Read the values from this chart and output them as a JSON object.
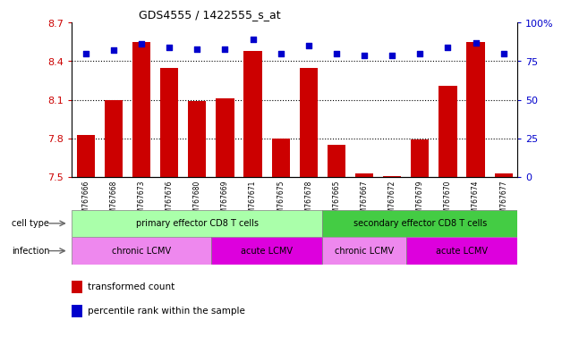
{
  "title": "GDS4555 / 1422555_s_at",
  "samples": [
    "GSM767666",
    "GSM767668",
    "GSM767673",
    "GSM767676",
    "GSM767680",
    "GSM767669",
    "GSM767671",
    "GSM767675",
    "GSM767678",
    "GSM767665",
    "GSM767667",
    "GSM767672",
    "GSM767679",
    "GSM767670",
    "GSM767674",
    "GSM767677"
  ],
  "bar_values": [
    7.83,
    8.1,
    8.55,
    8.35,
    8.09,
    8.11,
    8.48,
    7.8,
    8.35,
    7.75,
    7.53,
    7.51,
    7.79,
    8.21,
    8.55,
    7.53
  ],
  "dot_values": [
    80,
    82,
    86,
    84,
    83,
    83,
    89,
    80,
    85,
    80,
    79,
    79,
    80,
    84,
    87,
    80
  ],
  "ylim_left": [
    7.5,
    8.7
  ],
  "ylim_right": [
    0,
    100
  ],
  "yticks_left": [
    7.5,
    7.8,
    8.1,
    8.4,
    8.7
  ],
  "yticks_right": [
    0,
    25,
    50,
    75,
    100
  ],
  "ytick_labels_right": [
    "0",
    "25",
    "50",
    "75",
    "100%"
  ],
  "grid_dotted_at": [
    7.8,
    8.1,
    8.4
  ],
  "bar_color": "#cc0000",
  "dot_color": "#0000cc",
  "cell_type_groups": [
    {
      "label": "primary effector CD8 T cells",
      "start": 0,
      "end": 9,
      "color": "#aaffaa"
    },
    {
      "label": "secondary effector CD8 T cells",
      "start": 9,
      "end": 16,
      "color": "#44cc44"
    }
  ],
  "infection_groups": [
    {
      "label": "chronic LCMV",
      "start": 0,
      "end": 5,
      "color": "#ee88ee"
    },
    {
      "label": "acute LCMV",
      "start": 5,
      "end": 9,
      "color": "#dd00dd"
    },
    {
      "label": "chronic LCMV",
      "start": 9,
      "end": 12,
      "color": "#ee88ee"
    },
    {
      "label": "acute LCMV",
      "start": 12,
      "end": 16,
      "color": "#dd00dd"
    }
  ],
  "legend_items": [
    {
      "label": "transformed count",
      "color": "#cc0000"
    },
    {
      "label": "percentile rank within the sample",
      "color": "#0000cc"
    }
  ],
  "cell_type_label": "cell type",
  "infection_label": "infection",
  "tick_label_color_left": "#cc0000",
  "tick_label_color_right": "#0000cc"
}
